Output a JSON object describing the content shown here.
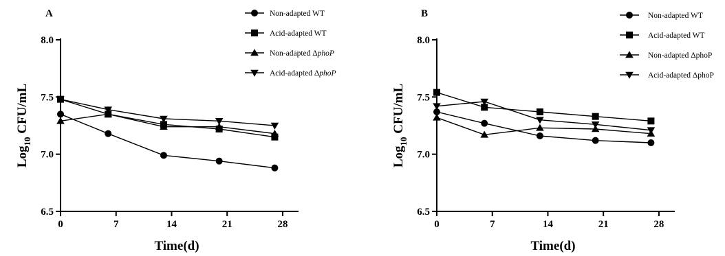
{
  "chart_data": [
    {
      "type": "line",
      "panel": "A",
      "xlabel": "Time(d)",
      "ylabel_main": "Log",
      "ylabel_sub": "10",
      "ylabel_rest": " CFU/mL",
      "xlim": [
        0,
        30
      ],
      "ylim": [
        6.5,
        8.0
      ],
      "xticks": [
        0,
        7,
        14,
        21,
        28
      ],
      "yticks": [
        6.5,
        7.0,
        7.5,
        8.0
      ],
      "ytick_labels": [
        "6.5",
        "7.0",
        "7.5",
        "8.0"
      ],
      "x": [
        0,
        6,
        13,
        20,
        27
      ],
      "series": [
        {
          "name": "Non-adapted WT",
          "name_pre": "Non-adapted WT",
          "name_italic": "",
          "marker": "circle",
          "values": [
            7.35,
            7.18,
            6.99,
            6.94,
            6.88
          ]
        },
        {
          "name": "Acid-adapted WT",
          "name_pre": "Acid-adapted WT",
          "name_italic": "",
          "marker": "square",
          "values": [
            7.48,
            7.35,
            7.26,
            7.22,
            7.15
          ]
        },
        {
          "name": "Non-adapted ΔphoP",
          "name_pre": "Non-adapted Δ",
          "name_italic": "phoP",
          "marker": "triangle-up",
          "values": [
            7.29,
            7.35,
            7.24,
            7.24,
            7.18
          ]
        },
        {
          "name": "Acid-adapted ΔphoP",
          "name_pre": "Acid-adapted Δ",
          "name_italic": "phoP",
          "marker": "triangle-down",
          "values": [
            7.48,
            7.39,
            7.31,
            7.29,
            7.25
          ]
        }
      ]
    },
    {
      "type": "line",
      "panel": "B",
      "xlabel": "Time(d)",
      "ylabel_main": "Log",
      "ylabel_sub": "10",
      "ylabel_rest": " CFU/mL",
      "xlim": [
        0,
        30
      ],
      "ylim": [
        6.5,
        8.0
      ],
      "xticks": [
        0,
        7,
        14,
        21,
        28
      ],
      "yticks": [
        6.5,
        7.0,
        7.5,
        8.0
      ],
      "ytick_labels": [
        "6.5",
        "7.0",
        "7.5",
        "8.0"
      ],
      "x": [
        0,
        6,
        13,
        20,
        27
      ],
      "series": [
        {
          "name": "Non-adapted WT",
          "name_pre": "Non-adapted WT",
          "name_italic": "",
          "marker": "circle",
          "values": [
            7.37,
            7.27,
            7.16,
            7.12,
            7.1
          ]
        },
        {
          "name": "Acid-adapted WT",
          "name_pre": "Acid-adapted WT",
          "name_italic": "",
          "marker": "square",
          "values": [
            7.54,
            7.41,
            7.37,
            7.33,
            7.29
          ]
        },
        {
          "name": "Non-adapted ΔphoP",
          "name_pre": "Non-adapted ΔphoP",
          "name_italic": "",
          "marker": "triangle-up",
          "values": [
            7.32,
            7.17,
            7.23,
            7.22,
            7.18
          ]
        },
        {
          "name": "Acid-adapted ΔphoP",
          "name_pre": "Acid-adapted ΔphoP",
          "name_italic": "",
          "marker": "triangle-down",
          "values": [
            7.42,
            7.46,
            7.3,
            7.26,
            7.21
          ]
        }
      ]
    }
  ]
}
